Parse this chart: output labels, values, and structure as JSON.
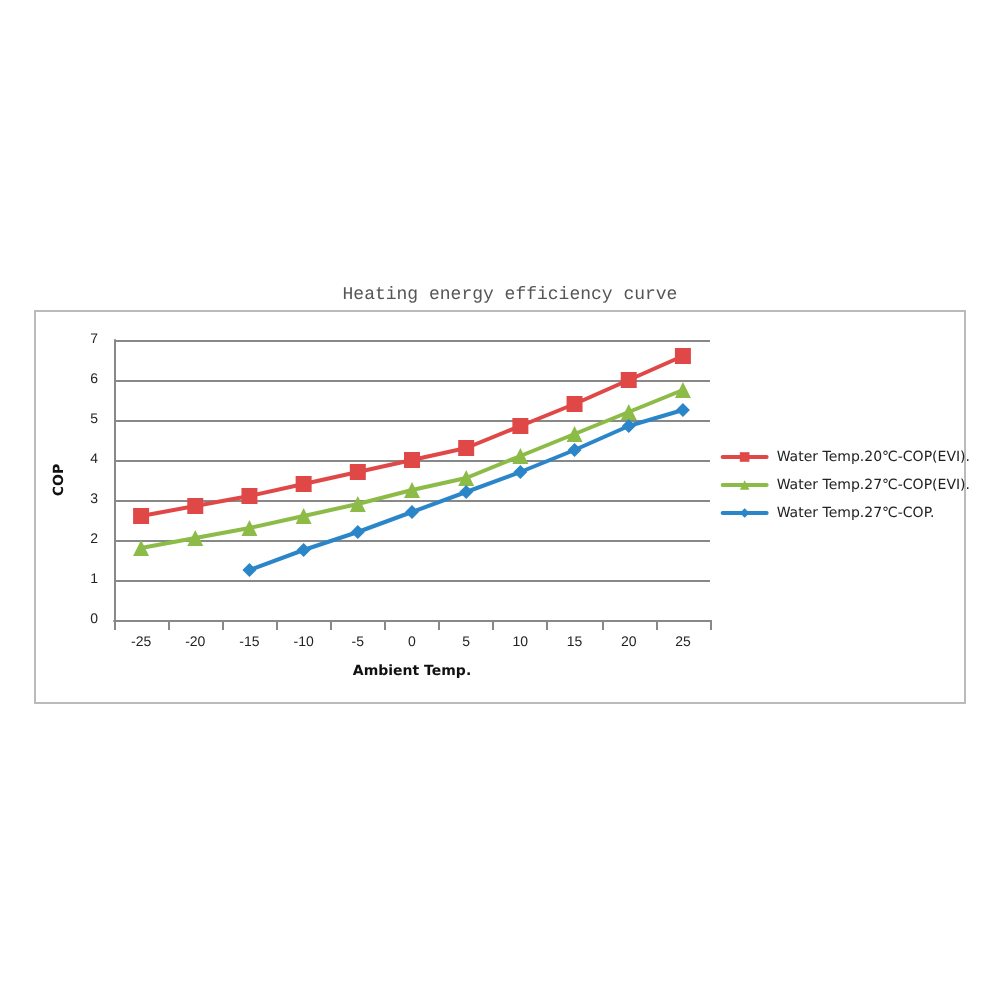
{
  "chart_data": {
    "type": "line",
    "title": "Heating energy efficiency curve",
    "xlabel": "Ambient Temp.",
    "ylabel": "COP",
    "categories": [
      "-25",
      "-20",
      "-15",
      "-10",
      "-5",
      "0",
      "5",
      "10",
      "15",
      "20",
      "25"
    ],
    "series": [
      {
        "name": "Water Temp.20℃-COP(EVI).",
        "color": "#e04848",
        "marker": "square",
        "values": [
          2.6,
          2.85,
          3.1,
          3.4,
          3.7,
          4.0,
          4.3,
          4.85,
          5.4,
          6.0,
          6.6
        ]
      },
      {
        "name": "Water Temp.27℃-COP(EVI).",
        "color": "#8dbb48",
        "marker": "triangle",
        "values": [
          1.8,
          2.05,
          2.3,
          2.6,
          2.9,
          3.25,
          3.55,
          4.1,
          4.65,
          5.2,
          5.75
        ]
      },
      {
        "name": "Water Temp.27℃-COP.",
        "color": "#2a86c8",
        "marker": "diamond",
        "values": [
          null,
          null,
          1.25,
          1.75,
          2.2,
          2.7,
          3.2,
          3.7,
          4.25,
          4.85,
          5.25
        ]
      }
    ],
    "ylim": [
      0,
      7
    ],
    "yticks": [
      0,
      1,
      2,
      3,
      4,
      5,
      6,
      7
    ],
    "grid": "y",
    "legend": "right",
    "line_style": "solid"
  }
}
